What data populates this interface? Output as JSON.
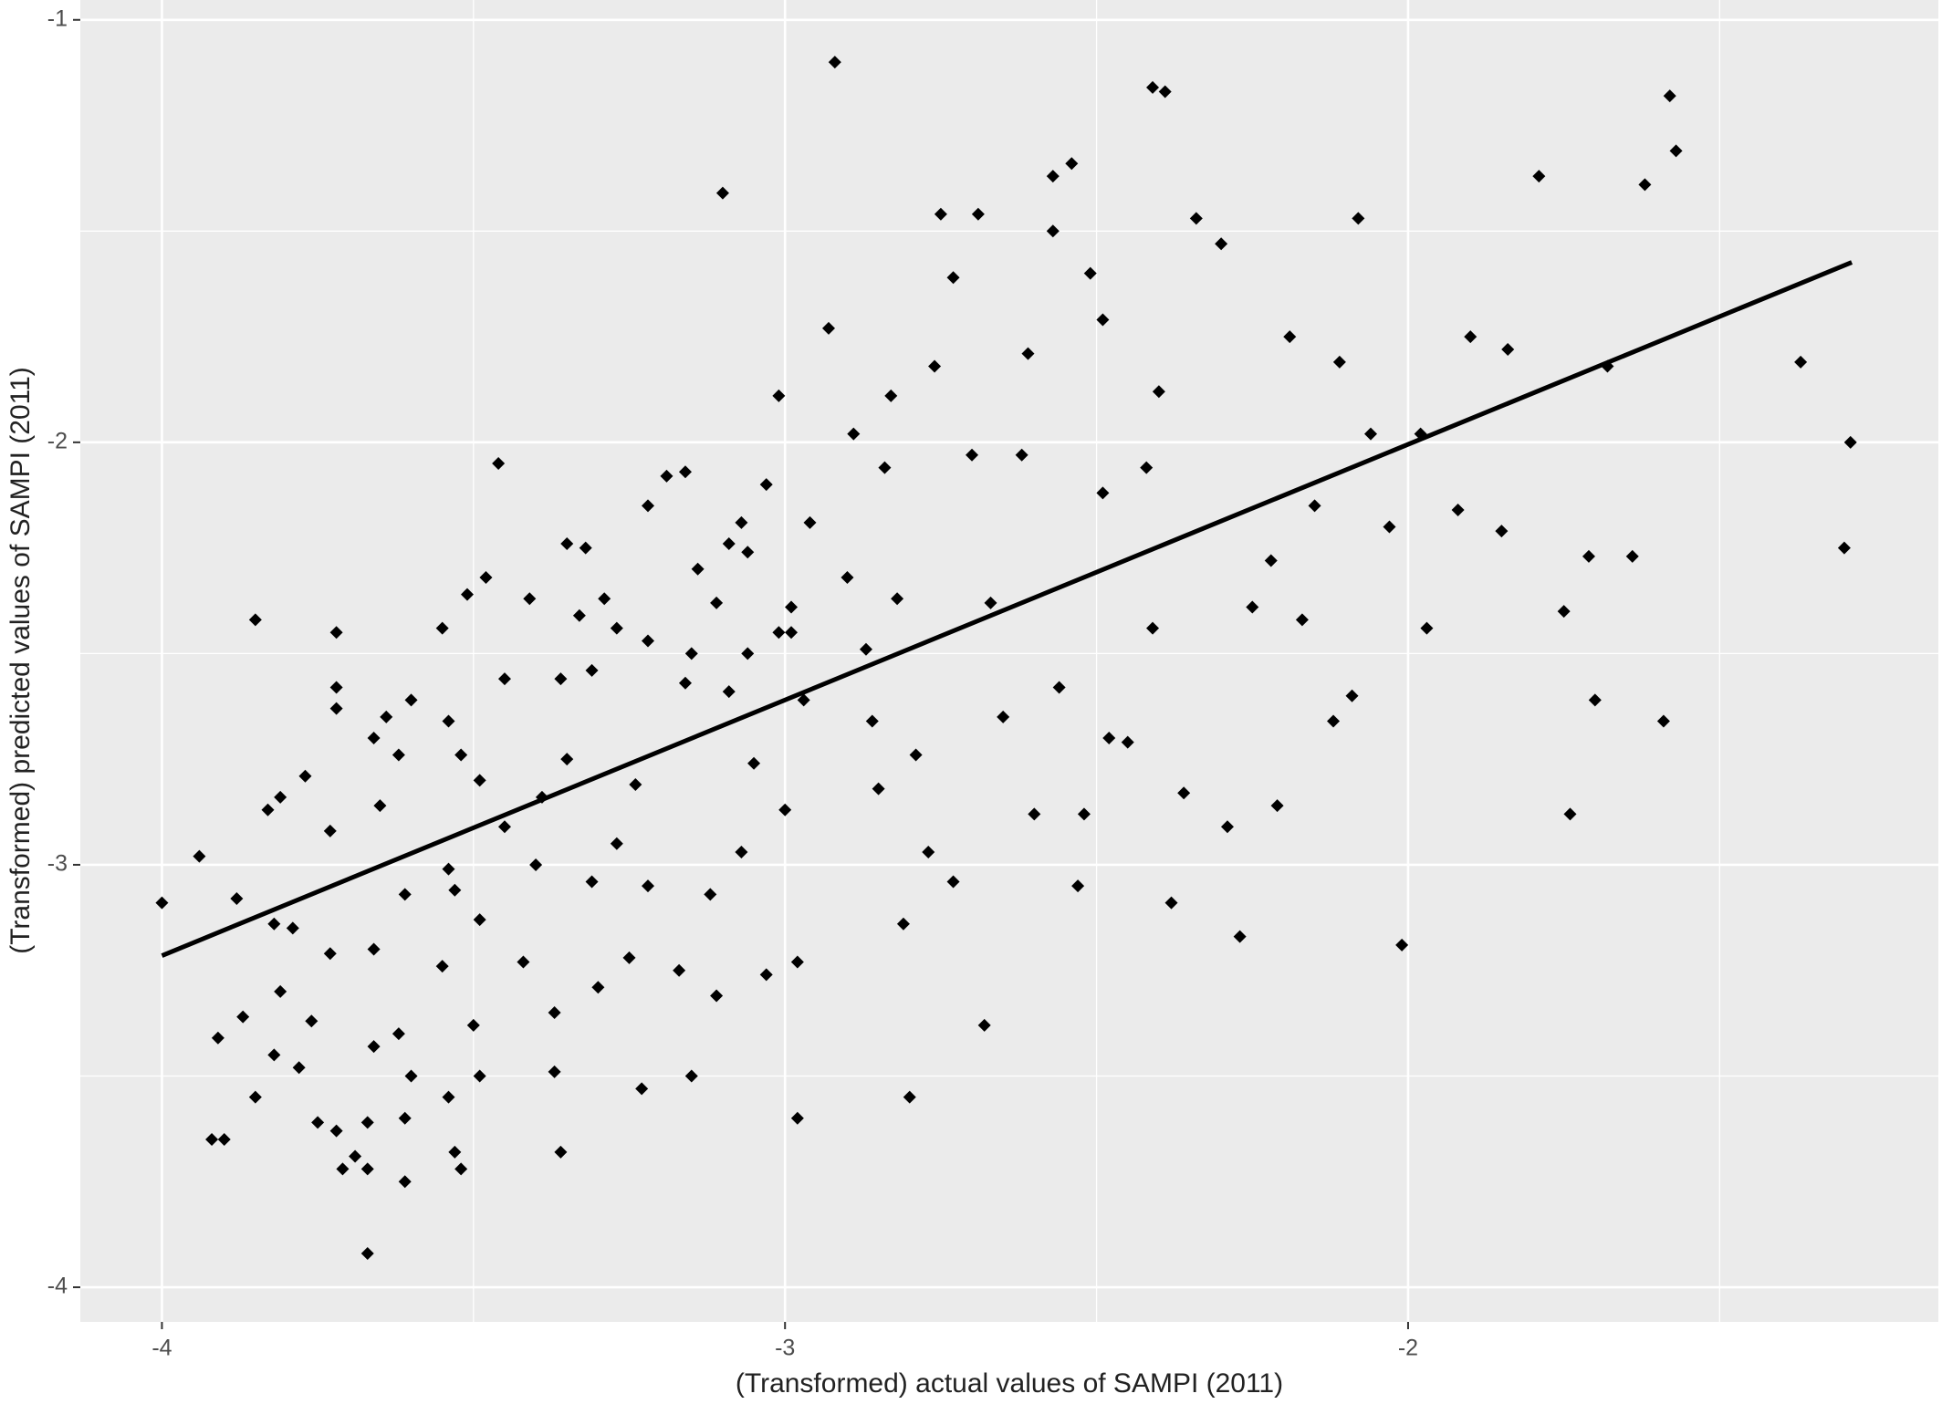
{
  "chart_data": {
    "type": "scatter",
    "x_label": "(Transformed)  actual values of SAMPI (2011)",
    "y_label": "(Transformed)  predicted values of SAMPI (2011)",
    "xlim": [
      -4.131,
      -1.149
    ],
    "ylim": [
      -4.082,
      -0.953
    ],
    "xticks": [
      -4,
      -3,
      -2
    ],
    "yticks": [
      -4,
      -3,
      -2,
      -1
    ],
    "grid": true,
    "color": "#000000",
    "x": [
      -4.0,
      -3.94,
      -3.88,
      -3.91,
      -3.92,
      -3.9,
      -3.85,
      -3.83,
      -3.81,
      -3.77,
      -3.82,
      -3.79,
      -3.87,
      -3.85,
      -3.82,
      -3.81,
      -3.78,
      -3.76,
      -3.75,
      -3.73,
      -3.72,
      -3.72,
      -3.72,
      -3.73,
      -3.72,
      -3.71,
      -3.69,
      -3.67,
      -3.67,
      -3.67,
      -3.66,
      -3.66,
      -3.64,
      -3.65,
      -3.66,
      -3.62,
      -3.62,
      -3.6,
      -3.61,
      -3.61,
      -3.61,
      -3.6,
      -3.55,
      -3.54,
      -3.55,
      -3.54,
      -3.53,
      -3.52,
      -3.54,
      -3.53,
      -3.52,
      -3.51,
      -3.49,
      -3.5,
      -3.49,
      -3.49,
      -3.48,
      -3.46,
      -3.45,
      -3.45,
      -3.42,
      -3.41,
      -3.4,
      -3.39,
      -3.37,
      -3.37,
      -3.36,
      -3.36,
      -3.35,
      -3.35,
      -3.33,
      -3.32,
      -3.29,
      -3.27,
      -3.31,
      -3.31,
      -3.3,
      -3.27,
      -3.25,
      -3.24,
      -3.23,
      -3.22,
      -3.22,
      -3.22,
      -3.19,
      -3.16,
      -3.16,
      -3.15,
      -3.14,
      -3.17,
      -3.15,
      -3.12,
      -3.11,
      -3.1,
      -3.11,
      -3.09,
      -3.07,
      -3.06,
      -3.09,
      -3.06,
      -3.05,
      -3.07,
      -3.03,
      -3.03,
      -3.01,
      -2.99,
      -2.99,
      -3.01,
      -3.0,
      -2.98,
      -2.98,
      -2.96,
      -2.97,
      -2.93,
      -2.92,
      -2.89,
      -2.9,
      -2.87,
      -2.86,
      -2.85,
      -2.84,
      -2.83,
      -2.82,
      -2.81,
      -2.8,
      -2.79,
      -2.77,
      -2.76,
      -2.75,
      -2.73,
      -2.73,
      -2.7,
      -2.69,
      -2.68,
      -2.67,
      -2.65,
      -2.62,
      -2.61,
      -2.6,
      -2.57,
      -2.57,
      -2.56,
      -2.54,
      -2.53,
      -2.52,
      -2.51,
      -2.49,
      -2.49,
      -2.48,
      -2.45,
      -2.42,
      -2.41,
      -2.39,
      -2.41,
      -2.4,
      -2.38,
      -2.36,
      -2.34,
      -2.3,
      -2.29,
      -2.27,
      -2.25,
      -2.22,
      -2.21,
      -2.19,
      -2.17,
      -2.15,
      -2.12,
      -2.11,
      -2.09,
      -2.08,
      -2.06,
      -2.03,
      -2.01,
      -1.98,
      -1.97,
      -1.92,
      -1.9,
      -1.85,
      -1.84,
      -1.79,
      -1.75,
      -1.74,
      -1.71,
      -1.7,
      -1.68,
      -1.64,
      -1.62,
      -1.59,
      -1.58,
      -1.57,
      -1.37,
      -1.3,
      -1.29
    ],
    "y": [
      -3.09,
      -2.98,
      -3.08,
      -3.41,
      -3.65,
      -3.65,
      -2.42,
      -2.87,
      -2.84,
      -2.79,
      -3.14,
      -3.15,
      -3.36,
      -3.55,
      -3.45,
      -3.3,
      -3.48,
      -3.37,
      -3.61,
      -2.92,
      -2.45,
      -2.58,
      -2.63,
      -3.21,
      -3.63,
      -3.72,
      -3.69,
      -3.61,
      -3.72,
      -3.92,
      -3.2,
      -2.7,
      -2.65,
      -2.86,
      -3.43,
      -3.4,
      -2.74,
      -2.61,
      -3.07,
      -3.6,
      -3.75,
      -3.5,
      -3.24,
      -2.66,
      -2.44,
      -3.01,
      -3.06,
      -2.74,
      -3.55,
      -3.68,
      -3.72,
      -2.36,
      -3.13,
      -3.38,
      -3.5,
      -2.8,
      -2.32,
      -2.05,
      -2.56,
      -2.91,
      -3.23,
      -2.37,
      -3.0,
      -2.84,
      -3.35,
      -3.49,
      -3.68,
      -2.56,
      -2.24,
      -2.75,
      -2.41,
      -2.25,
      -2.37,
      -2.44,
      -2.54,
      -3.04,
      -3.29,
      -2.95,
      -3.22,
      -2.81,
      -3.53,
      -2.15,
      -2.47,
      -3.05,
      -2.08,
      -2.07,
      -2.57,
      -2.5,
      -2.3,
      -3.25,
      -3.5,
      -3.07,
      -3.31,
      -1.41,
      -2.38,
      -2.24,
      -2.19,
      -2.26,
      -2.59,
      -2.5,
      -2.76,
      -2.97,
      -3.26,
      -2.1,
      -2.45,
      -2.45,
      -2.39,
      -1.89,
      -2.87,
      -3.23,
      -3.6,
      -2.19,
      -2.61,
      -1.73,
      -1.1,
      -1.98,
      -2.32,
      -2.49,
      -2.66,
      -2.82,
      -2.06,
      -1.89,
      -2.37,
      -3.14,
      -3.55,
      -2.74,
      -2.97,
      -1.82,
      -1.46,
      -1.61,
      -3.04,
      -2.03,
      -1.46,
      -3.38,
      -2.38,
      -2.65,
      -2.03,
      -1.79,
      -2.88,
      -1.37,
      -1.5,
      -2.58,
      -1.34,
      -3.05,
      -2.88,
      -1.6,
      -1.71,
      -2.12,
      -2.7,
      -2.71,
      -2.06,
      -1.16,
      -1.17,
      -2.44,
      -1.88,
      -3.09,
      -2.83,
      -1.47,
      -1.53,
      -2.91,
      -3.17,
      -2.39,
      -2.28,
      -2.86,
      -1.75,
      -2.42,
      -2.15,
      -2.66,
      -1.81,
      -2.6,
      -1.47,
      -1.98,
      -2.2,
      -3.19,
      -1.98,
      -2.44,
      -2.16,
      -1.75,
      -2.21,
      -1.78,
      -1.37,
      -2.4,
      -2.88,
      -2.27,
      -2.61,
      -1.82,
      -2.27,
      -1.39,
      -2.66,
      -1.18,
      -1.31,
      -1.81,
      -2.25,
      -2.0
    ],
    "fit_line": {
      "x": [
        -4.0,
        -1.288
      ],
      "y": [
        -3.215,
        -1.574
      ],
      "color": "#000000"
    }
  }
}
